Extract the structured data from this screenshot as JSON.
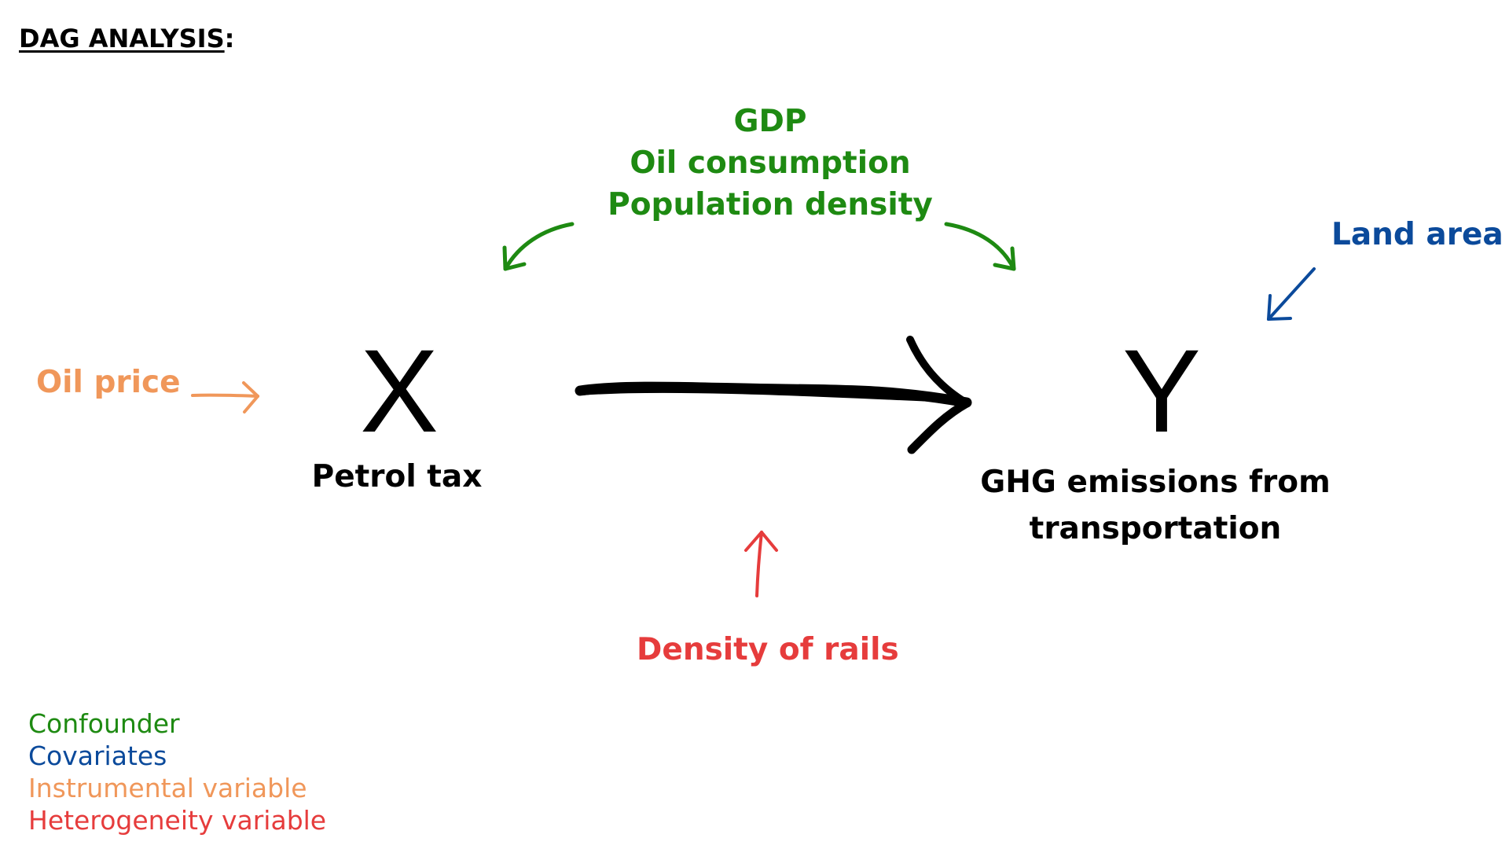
{
  "title": {
    "main": "DAG ANALYSIS",
    "colon": ":"
  },
  "confounders": {
    "items": [
      "GDP",
      "Oil consumption",
      "Population density"
    ]
  },
  "covariate": "Land area",
  "instrument": "Oil price",
  "treatment": {
    "symbol": "X",
    "label": "Petrol tax"
  },
  "outcome": {
    "symbol": "Y",
    "label_line1": "GHG emissions from",
    "label_line2": "transportation"
  },
  "heterogeneity": "Density of rails",
  "legend": {
    "items": [
      {
        "label": "Confounder",
        "color": "#1e8a12"
      },
      {
        "label": "Covariates",
        "color": "#0b4a9b"
      },
      {
        "label": "Instrumental variable",
        "color": "#f0975a"
      },
      {
        "label": "Heterogeneity variable",
        "color": "#e63c3c"
      }
    ]
  },
  "colors": {
    "confounder": "#1e8a12",
    "covariate": "#0b4a9b",
    "instrument": "#f0975a",
    "heterogeneity": "#e63c3c",
    "main": "#000000"
  }
}
